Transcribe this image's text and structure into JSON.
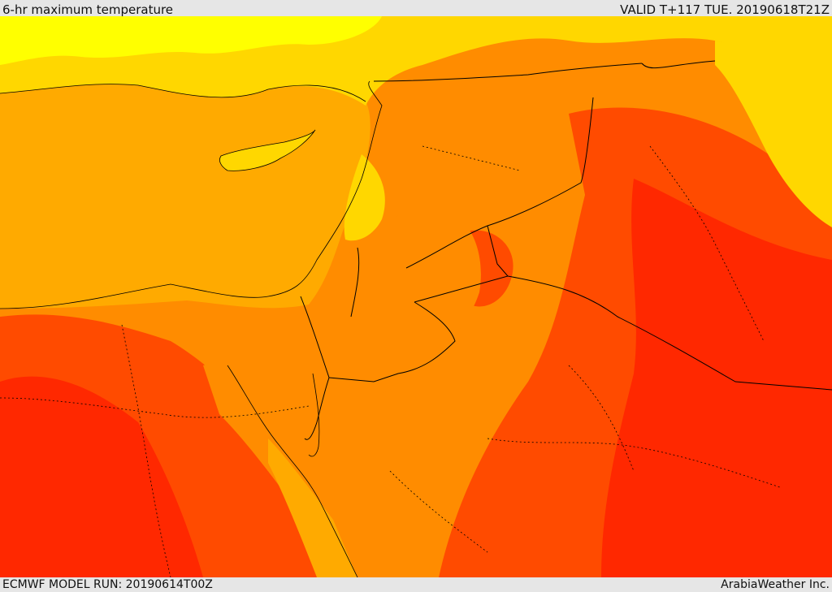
{
  "header": {
    "title": "6-hr maximum temperature",
    "valid": "VALID T+117 TUE. 20190618T21Z"
  },
  "footer": {
    "model_run": "ECMWF MODEL RUN: 20190614T00Z",
    "credit": "ArabiaWeather Inc."
  },
  "palette": {
    "yellow": "#ffff00",
    "light_yellow_orange": "#ffd700",
    "sea_orange": "#ffaa00",
    "orange": "#ff8c00",
    "dark_orange": "#ff6a00",
    "red_orange": "#ff4b00",
    "red": "#ff2800",
    "border_color": "#000000"
  }
}
